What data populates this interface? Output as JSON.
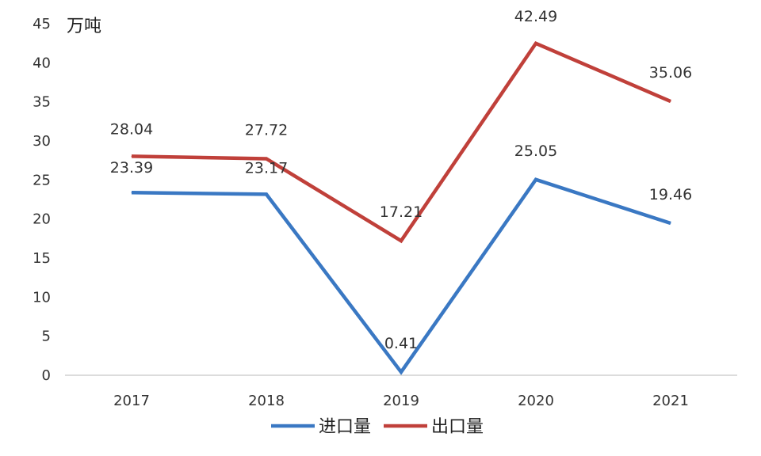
{
  "chart_data": {
    "type": "line",
    "title": "",
    "xlabel": "",
    "ylabel": "万吨",
    "categories": [
      "2017",
      "2018",
      "2019",
      "2020",
      "2021"
    ],
    "ylim": [
      0,
      45
    ],
    "yticks": [
      0,
      5,
      10,
      15,
      20,
      25,
      30,
      35,
      40,
      45
    ],
    "grid": false,
    "legend_position": "bottom",
    "series": [
      {
        "name": "进口量",
        "color": "#3a78c3",
        "values": [
          23.39,
          23.17,
          0.41,
          25.05,
          19.46
        ],
        "labels": [
          "23.39",
          "23.17",
          "0.41",
          "25.05",
          "19.46"
        ]
      },
      {
        "name": "出口量",
        "color": "#c0403a",
        "values": [
          28.04,
          27.72,
          17.21,
          42.49,
          35.06
        ],
        "labels": [
          "28.04",
          "27.72",
          "17.21",
          "42.49",
          "35.06"
        ]
      }
    ]
  }
}
